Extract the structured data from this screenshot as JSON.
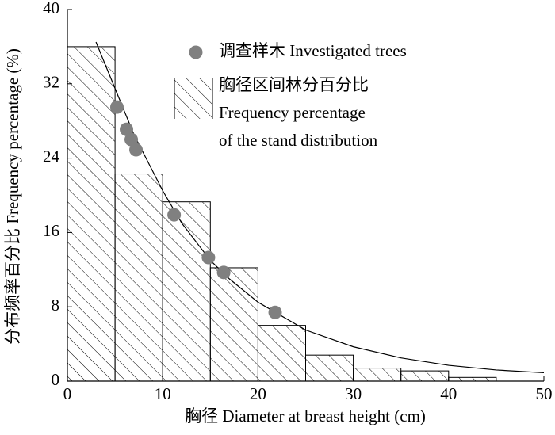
{
  "chart_data": {
    "type": "histogram",
    "x_label": "胸径 Diameter at breast height (cm)",
    "y_label": "分布频率百分比 Frequency percentage (%)",
    "bins": [
      0,
      5,
      10,
      15,
      20,
      25,
      30,
      35,
      40,
      45,
      50
    ],
    "values": [
      36,
      22.3,
      19.3,
      12.2,
      6.0,
      2.8,
      1.4,
      1.1,
      0.4,
      0
    ],
    "histogram_name": [
      "胸径区间林分百分比",
      "Frequency percentage",
      "of the stand distribution"
    ],
    "scatter": {
      "name": "调查样木 Investigated trees",
      "color": "#808080",
      "x": [
        5.2,
        6.2,
        6.7,
        7.2,
        11.2,
        14.8,
        16.4,
        21.8
      ],
      "y": [
        29.5,
        27.1,
        26.0,
        24.9,
        17.9,
        13.3,
        11.7,
        7.4
      ]
    },
    "curve": {
      "x": [
        3,
        5,
        7,
        10,
        12,
        15,
        17,
        20,
        25,
        30,
        35,
        40,
        45,
        50
      ],
      "y": [
        36.5,
        31.5,
        26.5,
        20.5,
        17,
        13,
        11,
        8.5,
        5.5,
        3.7,
        2.5,
        1.7,
        1.2,
        0.9
      ]
    },
    "xlim": [
      0,
      50
    ],
    "xticks": [
      0,
      10,
      20,
      30,
      40,
      50
    ],
    "ylim": [
      0,
      40
    ],
    "yticks": [
      0,
      8,
      16,
      24,
      32,
      40
    ]
  }
}
